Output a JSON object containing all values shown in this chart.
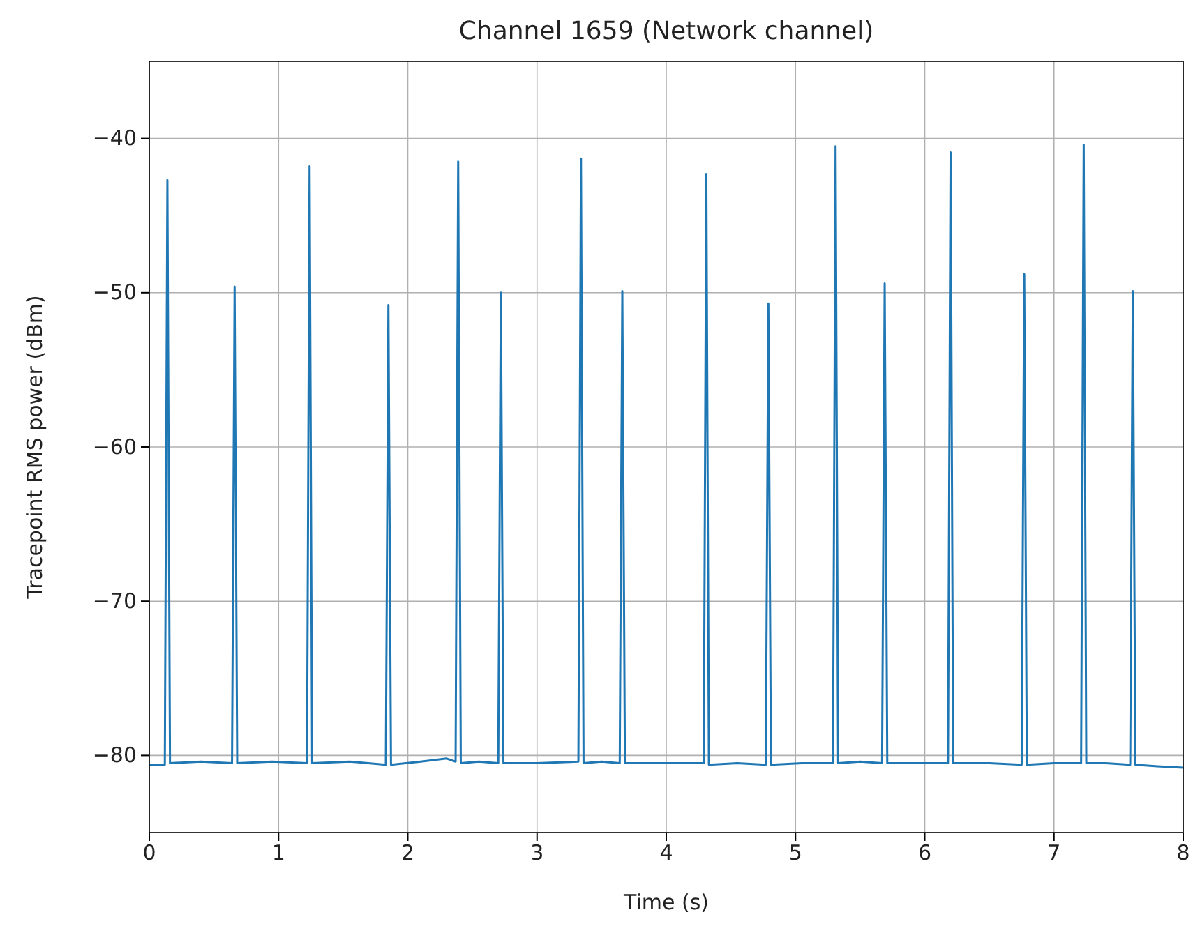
{
  "chart_data": {
    "type": "line",
    "title": "Channel 1659 (Network channel)",
    "xlabel": "Time (s)",
    "ylabel": "Tracepoint RMS power (dBm)",
    "xlim": [
      0,
      8
    ],
    "xticks": [
      0,
      1,
      2,
      3,
      4,
      5,
      6,
      7,
      8
    ],
    "ylim": [
      -85,
      -35
    ],
    "yticks": [
      -80,
      -70,
      -60,
      -50,
      -40
    ],
    "grid": true,
    "series": [
      {
        "color": "#1f77b4",
        "x": [
          0,
          0.12,
          0.14,
          0.16,
          0.4,
          0.64,
          0.66,
          0.68,
          0.95,
          1.22,
          1.24,
          1.26,
          1.55,
          1.83,
          1.85,
          1.87,
          2.1,
          2.3,
          2.37,
          2.39,
          2.41,
          2.55,
          2.7,
          2.72,
          2.74,
          3.0,
          3.32,
          3.34,
          3.36,
          3.5,
          3.64,
          3.66,
          3.68,
          4.0,
          4.29,
          4.31,
          4.33,
          4.55,
          4.77,
          4.79,
          4.81,
          5.05,
          5.29,
          5.31,
          5.33,
          5.5,
          5.67,
          5.69,
          5.71,
          5.95,
          6.18,
          6.2,
          6.22,
          6.5,
          6.75,
          6.77,
          6.79,
          7.0,
          7.21,
          7.23,
          7.25,
          7.4,
          7.59,
          7.61,
          7.63,
          7.8,
          8
        ],
        "values": [
          -80.6,
          -80.6,
          -42.7,
          -80.5,
          -80.4,
          -80.5,
          -49.6,
          -80.5,
          -80.4,
          -80.5,
          -41.8,
          -80.5,
          -80.4,
          -80.6,
          -50.8,
          -80.6,
          -80.4,
          -80.2,
          -80.4,
          -41.5,
          -80.5,
          -80.4,
          -80.5,
          -50.0,
          -80.5,
          -80.5,
          -80.4,
          -41.3,
          -80.5,
          -80.4,
          -80.5,
          -49.9,
          -80.5,
          -80.5,
          -80.5,
          -42.3,
          -80.6,
          -80.5,
          -80.6,
          -50.7,
          -80.6,
          -80.5,
          -80.5,
          -40.5,
          -80.5,
          -80.4,
          -80.5,
          -49.4,
          -80.5,
          -80.5,
          -80.5,
          -40.9,
          -80.5,
          -80.5,
          -80.6,
          -48.8,
          -80.6,
          -80.5,
          -80.5,
          -40.4,
          -80.5,
          -80.5,
          -80.6,
          -49.9,
          -80.6,
          -80.7,
          -80.8
        ]
      }
    ]
  }
}
